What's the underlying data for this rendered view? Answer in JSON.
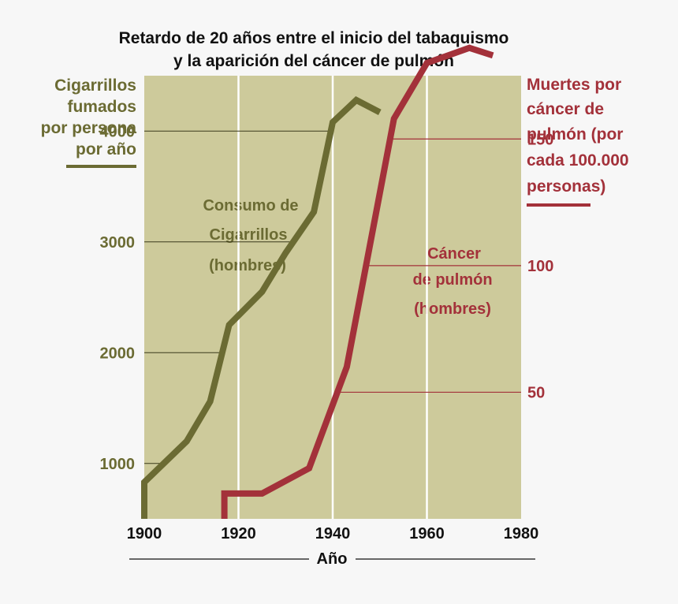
{
  "chart_data": {
    "type": "line",
    "title_lines": [
      "Retardo de 20 años entre el inicio del tabaquismo",
      "y la aparición del cáncer de pulmón"
    ],
    "xlabel": "Año",
    "x_ticks": [
      "1900",
      "1920",
      "1940",
      "1960",
      "1980"
    ],
    "xlim": [
      1900,
      1980
    ],
    "left_axis": {
      "label_lines": [
        "Cigarrillos",
        "fumados",
        "por persona",
        "por año"
      ],
      "ticks": [
        "1000",
        "2000",
        "3000",
        "4000"
      ],
      "tick_values": [
        1000,
        2000,
        3000,
        4000
      ],
      "ylim": [
        500,
        4500
      ]
    },
    "right_axis": {
      "label_lines": [
        "Muertes por",
        "cáncer de",
        "pulmón (por",
        "cada 100.000",
        "personas)"
      ],
      "ticks": [
        "50",
        "100",
        "150"
      ],
      "tick_values": [
        50,
        100,
        150
      ],
      "ylim": [
        0,
        175
      ]
    },
    "series": [
      {
        "axis": "left",
        "color": "#6b6b33",
        "annotation_lines": [
          "Consumo de",
          "Cigarrillos",
          "(hombres)"
        ],
        "points": [
          [
            1900,
            500
          ],
          [
            1900,
            830
          ],
          [
            1909,
            1200
          ],
          [
            1914,
            1560
          ],
          [
            1918,
            2250
          ],
          [
            1925,
            2550
          ],
          [
            1930,
            2900
          ],
          [
            1936,
            3270
          ],
          [
            1940,
            4080
          ],
          [
            1945,
            4280
          ],
          [
            1950,
            4170
          ]
        ]
      },
      {
        "axis": "right",
        "color": "#a3313a",
        "annotation_lines": [
          "Cáncer",
          "de pulmón",
          "(hombres)"
        ],
        "points": [
          [
            1917,
            0
          ],
          [
            1917,
            10
          ],
          [
            1925,
            10
          ],
          [
            1935,
            20
          ],
          [
            1943,
            60
          ],
          [
            1953,
            158
          ],
          [
            1960,
            180
          ],
          [
            1969,
            186
          ],
          [
            1974,
            183
          ]
        ]
      }
    ],
    "colors": {
      "plot_background": "#cdca9b",
      "grid": "#ffffff",
      "olive": "#6b6b33",
      "red": "#a3313a"
    }
  }
}
